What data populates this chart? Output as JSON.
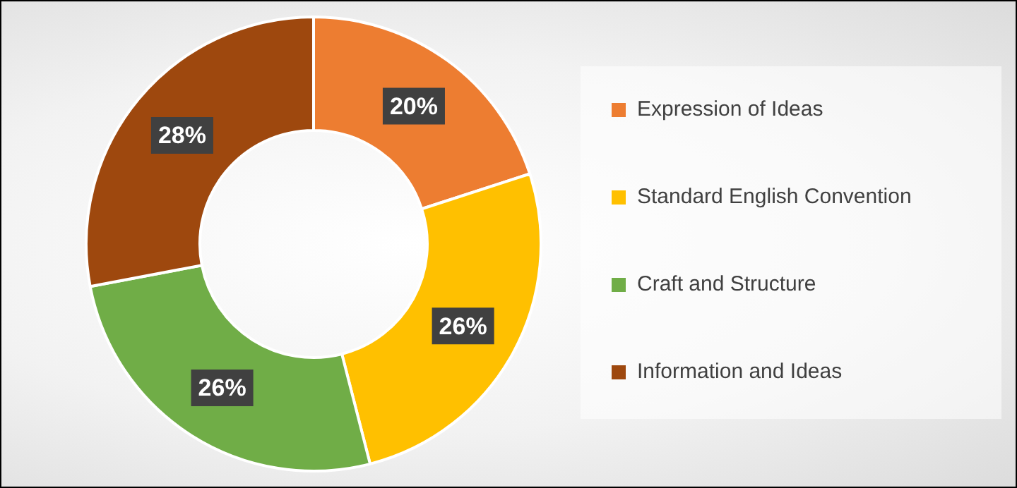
{
  "chart_data": {
    "type": "donut",
    "categories": [
      "Expression of Ideas",
      "Standard English Convention",
      "Craft and Structure",
      "Information and Ideas"
    ],
    "values": [
      20,
      26,
      26,
      28
    ],
    "colors": [
      "#ed7d31",
      "#ffc000",
      "#70ad47",
      "#9e480e"
    ],
    "value_labels": [
      "20%",
      "26%",
      "26%",
      "28%"
    ],
    "legend": "right"
  }
}
